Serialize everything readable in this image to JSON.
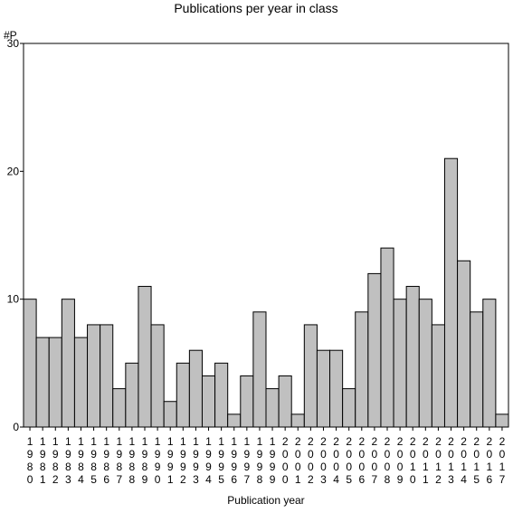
{
  "chart_data": {
    "type": "bar",
    "title": "Publications per year in class",
    "xlabel": "Publication year",
    "ylabel": "#P",
    "ylim": [
      0,
      30
    ],
    "yticks": [
      0,
      10,
      20,
      30
    ],
    "grid": false,
    "legend": "none",
    "bar_color": "#c0c0c0",
    "categories": [
      "1980",
      "1981",
      "1982",
      "1983",
      "1984",
      "1985",
      "1986",
      "1987",
      "1988",
      "1989",
      "1990",
      "1991",
      "1992",
      "1993",
      "1994",
      "1995",
      "1996",
      "1997",
      "1998",
      "1999",
      "2000",
      "2001",
      "2002",
      "2003",
      "2004",
      "2005",
      "2006",
      "2007",
      "2008",
      "2009",
      "2010",
      "2011",
      "2012",
      "2013",
      "2014",
      "2015",
      "2016",
      "2017"
    ],
    "values": [
      10,
      7,
      7,
      10,
      7,
      8,
      8,
      3,
      5,
      11,
      8,
      2,
      5,
      6,
      4,
      5,
      1,
      4,
      9,
      3,
      4,
      1,
      8,
      6,
      6,
      3,
      9,
      12,
      14,
      10,
      11,
      10,
      8,
      21,
      13,
      9,
      10,
      1
    ]
  }
}
